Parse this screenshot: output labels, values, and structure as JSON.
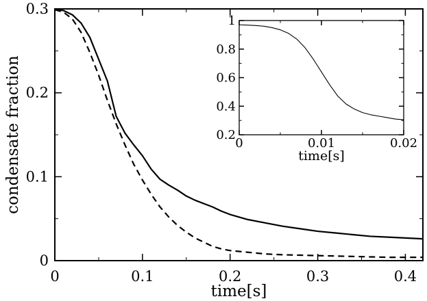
{
  "chart_data": [
    {
      "type": "line",
      "xlabel": "time[s]",
      "ylabel": "condensate fraction",
      "xlim": [
        0,
        0.42
      ],
      "ylim": [
        0,
        0.3
      ],
      "x_ticks": [
        "0",
        "0.1",
        "0.2",
        "0.3",
        "0.4"
      ],
      "y_ticks": [
        "0",
        "0.1",
        "0.2",
        "0.3"
      ],
      "grid": false,
      "series": [
        {
          "style": "solid",
          "color": "#000000",
          "points": [
            [
              0,
              0.299
            ],
            [
              0.01,
              0.298
            ],
            [
              0.02,
              0.293
            ],
            [
              0.03,
              0.283
            ],
            [
              0.04,
              0.266
            ],
            [
              0.05,
              0.24
            ],
            [
              0.06,
              0.214
            ],
            [
              0.07,
              0.172
            ],
            [
              0.08,
              0.152
            ],
            [
              0.09,
              0.138
            ],
            [
              0.1,
              0.125
            ],
            [
              0.11,
              0.109
            ],
            [
              0.12,
              0.097
            ],
            [
              0.13,
              0.09
            ],
            [
              0.14,
              0.084
            ],
            [
              0.15,
              0.077
            ],
            [
              0.16,
              0.072
            ],
            [
              0.17,
              0.068
            ],
            [
              0.18,
              0.064
            ],
            [
              0.19,
              0.059
            ],
            [
              0.2,
              0.055
            ],
            [
              0.22,
              0.049
            ],
            [
              0.24,
              0.045
            ],
            [
              0.26,
              0.041
            ],
            [
              0.28,
              0.038
            ],
            [
              0.3,
              0.035
            ],
            [
              0.32,
              0.033
            ],
            [
              0.34,
              0.031
            ],
            [
              0.36,
              0.029
            ],
            [
              0.38,
              0.028
            ],
            [
              0.4,
              0.027
            ],
            [
              0.42,
              0.026
            ]
          ]
        },
        {
          "style": "dashed",
          "color": "#000000",
          "points": [
            [
              0,
              0.299
            ],
            [
              0.01,
              0.296
            ],
            [
              0.02,
              0.288
            ],
            [
              0.03,
              0.272
            ],
            [
              0.04,
              0.248
            ],
            [
              0.05,
              0.221
            ],
            [
              0.06,
              0.191
            ],
            [
              0.07,
              0.163
            ],
            [
              0.08,
              0.138
            ],
            [
              0.09,
              0.115
            ],
            [
              0.1,
              0.096
            ],
            [
              0.11,
              0.079
            ],
            [
              0.12,
              0.064
            ],
            [
              0.13,
              0.052
            ],
            [
              0.14,
              0.042
            ],
            [
              0.15,
              0.034
            ],
            [
              0.16,
              0.027
            ],
            [
              0.17,
              0.022
            ],
            [
              0.18,
              0.017
            ],
            [
              0.19,
              0.014
            ],
            [
              0.2,
              0.012
            ],
            [
              0.22,
              0.01
            ],
            [
              0.24,
              0.008
            ],
            [
              0.26,
              0.007
            ],
            [
              0.28,
              0.0065
            ],
            [
              0.3,
              0.006
            ],
            [
              0.32,
              0.0055
            ],
            [
              0.34,
              0.005
            ],
            [
              0.36,
              0.0045
            ],
            [
              0.38,
              0.004
            ],
            [
              0.4,
              0.004
            ],
            [
              0.42,
              0.004
            ]
          ]
        }
      ]
    },
    {
      "type": "line",
      "xlabel": "time[s]",
      "ylabel": "",
      "xlim": [
        0,
        0.02
      ],
      "ylim": [
        0.2,
        1
      ],
      "x_ticks": [
        "0",
        "0.01",
        "0.02"
      ],
      "y_ticks": [
        "0.2",
        "0.4",
        "0.6",
        "0.8",
        "1"
      ],
      "grid": false,
      "series": [
        {
          "style": "solid",
          "color": "#000000",
          "points": [
            [
              0,
              0.97
            ],
            [
              0.001,
              0.968
            ],
            [
              0.002,
              0.965
            ],
            [
              0.003,
              0.96
            ],
            [
              0.004,
              0.95
            ],
            [
              0.005,
              0.935
            ],
            [
              0.006,
              0.91
            ],
            [
              0.007,
              0.87
            ],
            [
              0.008,
              0.81
            ],
            [
              0.009,
              0.73
            ],
            [
              0.01,
              0.64
            ],
            [
              0.011,
              0.55
            ],
            [
              0.012,
              0.47
            ],
            [
              0.013,
              0.415
            ],
            [
              0.014,
              0.38
            ],
            [
              0.015,
              0.355
            ],
            [
              0.016,
              0.34
            ],
            [
              0.017,
              0.33
            ],
            [
              0.018,
              0.32
            ],
            [
              0.019,
              0.31
            ],
            [
              0.02,
              0.305
            ]
          ]
        }
      ]
    }
  ]
}
